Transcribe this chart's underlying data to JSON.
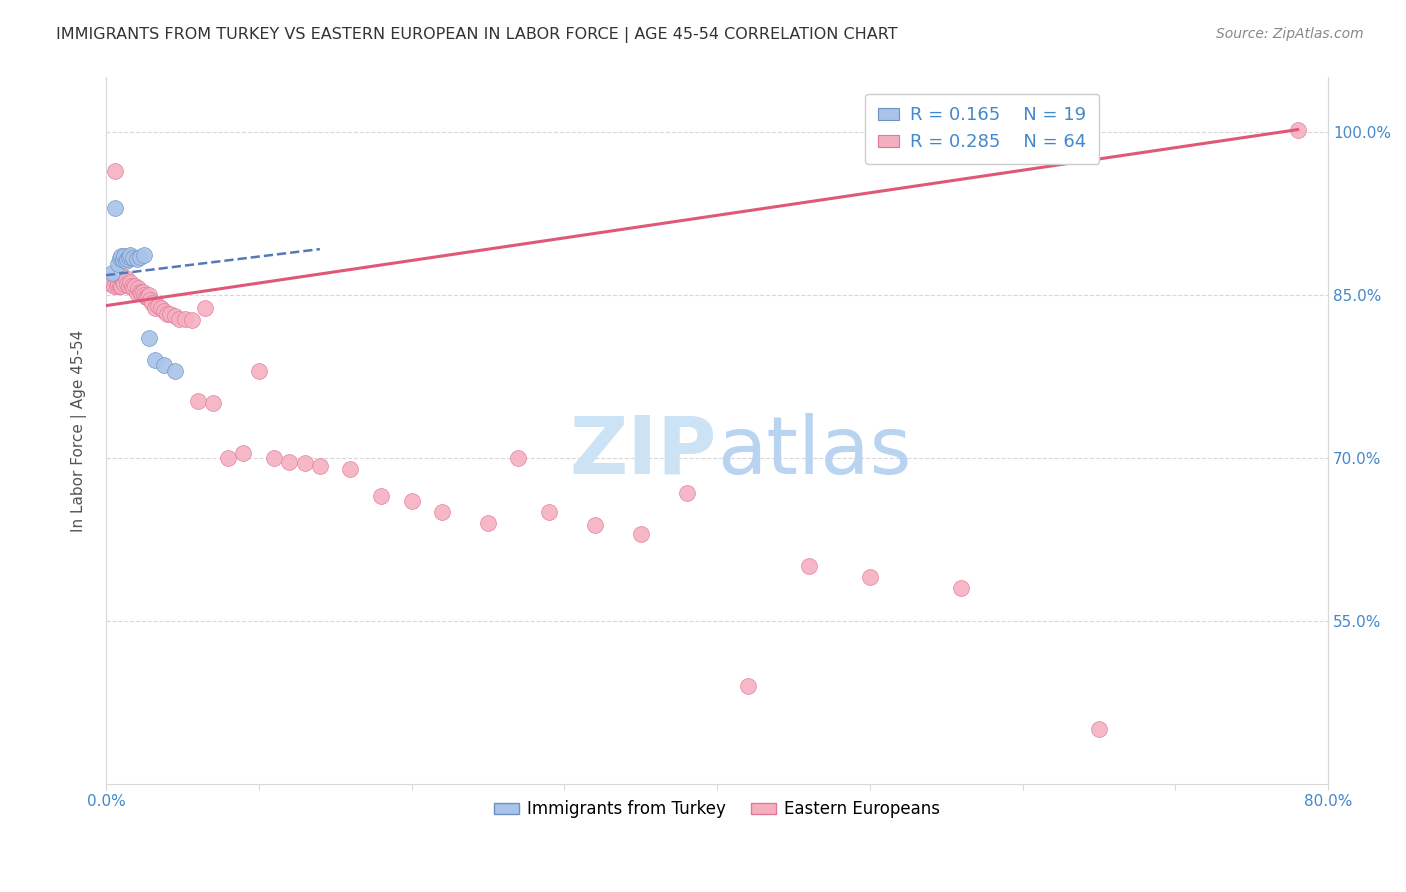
{
  "title": "IMMIGRANTS FROM TURKEY VS EASTERN EUROPEAN IN LABOR FORCE | AGE 45-54 CORRELATION CHART",
  "source": "Source: ZipAtlas.com",
  "ylabel": "In Labor Force | Age 45-54",
  "x_min": 0.0,
  "x_max": 0.8,
  "y_min": 0.4,
  "y_max": 1.05,
  "y_ticks": [
    0.55,
    0.7,
    0.85,
    1.0
  ],
  "y_tick_labels": [
    "55.0%",
    "70.0%",
    "85.0%",
    "100.0%"
  ],
  "grid_color": "#d8d8d8",
  "background_color": "#ffffff",
  "watermark_text": "ZIPatlas",
  "watermark_color": "#cce3f5",
  "legend_R_turkey": "0.165",
  "legend_N_turkey": "19",
  "legend_R_eastern": "0.285",
  "legend_N_eastern": "64",
  "turkey_color": "#a8c4e8",
  "turkey_edge_color": "#7090c0",
  "eastern_color": "#f5b0c0",
  "eastern_edge_color": "#e07898",
  "turkey_line_color": "#5577bb",
  "eastern_line_color": "#e05878",
  "marker_size": 130,
  "turkey_x": [
    0.004,
    0.006,
    0.008,
    0.009,
    0.01,
    0.011,
    0.012,
    0.013,
    0.014,
    0.015,
    0.016,
    0.018,
    0.02,
    0.022,
    0.025,
    0.028,
    0.032,
    0.038,
    0.045
  ],
  "turkey_y": [
    0.87,
    0.93,
    0.878,
    0.884,
    0.886,
    0.882,
    0.886,
    0.881,
    0.883,
    0.885,
    0.887,
    0.884,
    0.883,
    0.885,
    0.887,
    0.81,
    0.79,
    0.785,
    0.78
  ],
  "eastern_x": [
    0.003,
    0.004,
    0.005,
    0.006,
    0.007,
    0.008,
    0.009,
    0.01,
    0.011,
    0.012,
    0.013,
    0.014,
    0.015,
    0.016,
    0.017,
    0.018,
    0.019,
    0.02,
    0.021,
    0.022,
    0.023,
    0.024,
    0.025,
    0.026,
    0.027,
    0.028,
    0.029,
    0.03,
    0.032,
    0.034,
    0.036,
    0.038,
    0.04,
    0.042,
    0.045,
    0.048,
    0.052,
    0.056,
    0.06,
    0.065,
    0.07,
    0.08,
    0.09,
    0.1,
    0.11,
    0.12,
    0.13,
    0.14,
    0.16,
    0.18,
    0.2,
    0.22,
    0.25,
    0.27,
    0.29,
    0.32,
    0.35,
    0.38,
    0.42,
    0.46,
    0.5,
    0.56,
    0.65,
    0.78
  ],
  "eastern_y": [
    0.86,
    0.862,
    0.858,
    0.964,
    0.858,
    0.86,
    0.858,
    0.858,
    0.862,
    0.86,
    0.865,
    0.86,
    0.858,
    0.862,
    0.858,
    0.856,
    0.858,
    0.852,
    0.856,
    0.853,
    0.852,
    0.853,
    0.85,
    0.848,
    0.848,
    0.85,
    0.845,
    0.842,
    0.838,
    0.84,
    0.838,
    0.835,
    0.832,
    0.832,
    0.83,
    0.828,
    0.828,
    0.827,
    0.752,
    0.838,
    0.75,
    0.7,
    0.704,
    0.78,
    0.7,
    0.696,
    0.695,
    0.692,
    0.69,
    0.665,
    0.66,
    0.65,
    0.64,
    0.7,
    0.65,
    0.638,
    0.63,
    0.668,
    0.49,
    0.6,
    0.59,
    0.58,
    0.45,
    1.002
  ],
  "turkey_line_x0": 0.0,
  "turkey_line_x1": 0.14,
  "turkey_line_y0": 0.868,
  "turkey_line_y1": 0.892,
  "eastern_line_x0": 0.0,
  "eastern_line_x1": 0.78,
  "eastern_line_y0": 0.84,
  "eastern_line_y1": 1.002
}
